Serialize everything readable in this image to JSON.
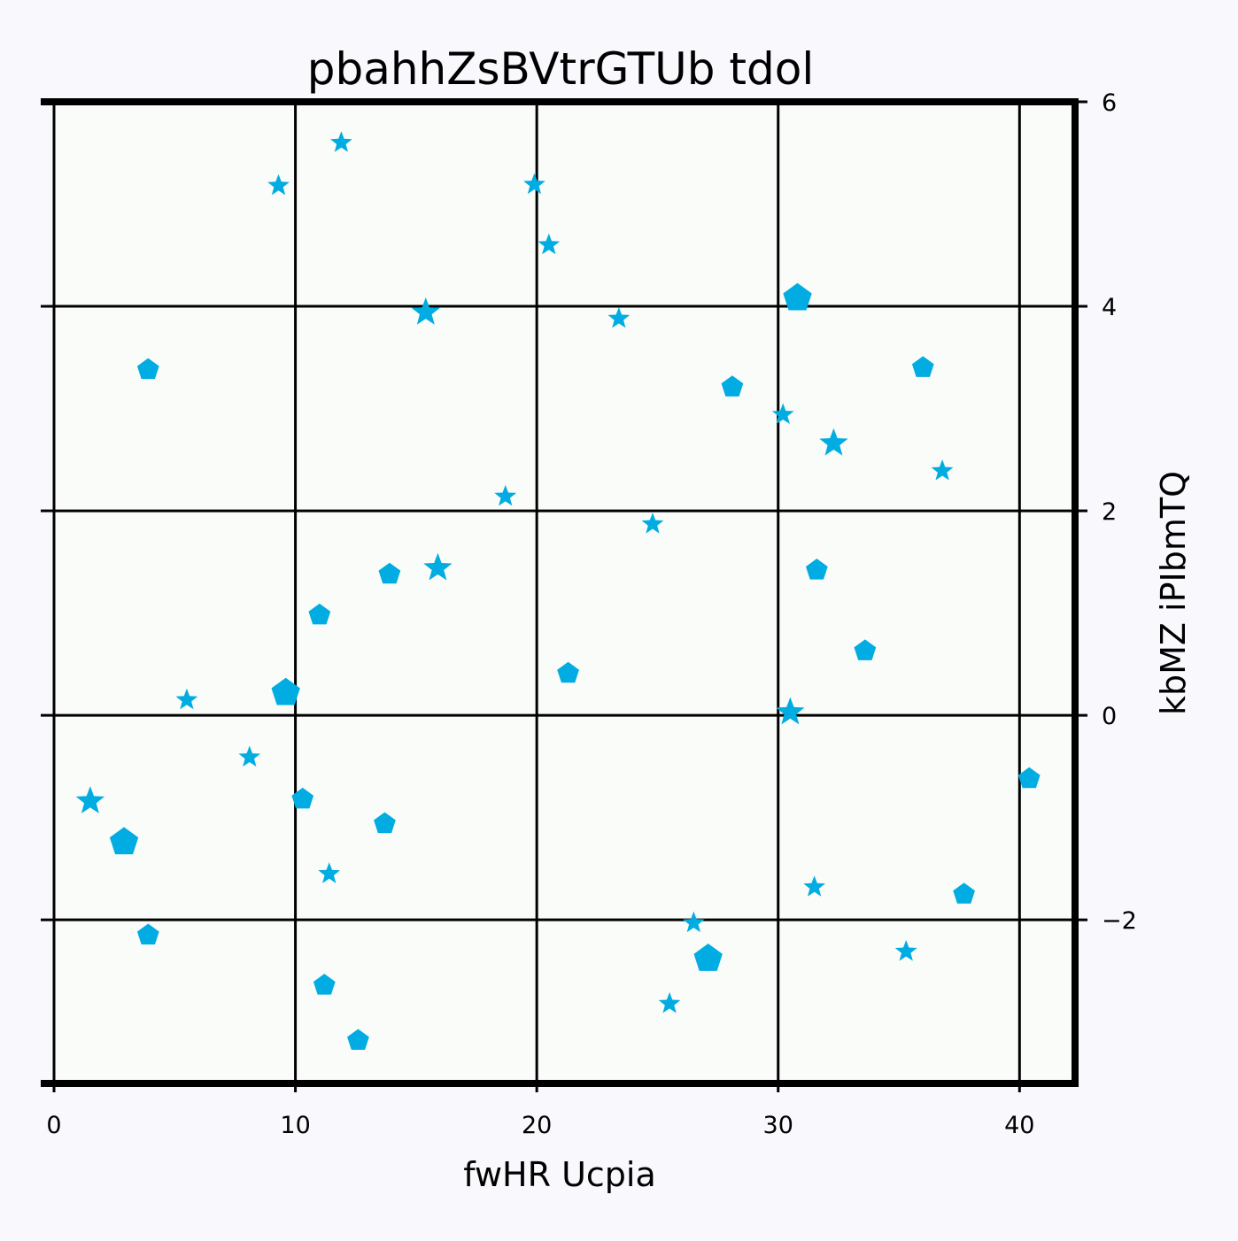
{
  "chart_data": {
    "type": "scatter",
    "title": "pbahhZsBVtrGTUb tdol",
    "xlabel": "fwHR Ucpia",
    "ylabel": "kbMZ iPIbmTQ",
    "xlim": [
      0,
      42.3
    ],
    "ylim": [
      -3.6,
      6.0
    ],
    "xticks": [
      0,
      10,
      20,
      30,
      40
    ],
    "xtick_labels": [
      "0",
      "10",
      "20",
      "30",
      "40"
    ],
    "yticks": [
      -2,
      0,
      2,
      4,
      6
    ],
    "ytick_labels": [
      "−2",
      "0",
      "2",
      "4",
      "6"
    ],
    "y_axis_side": "right",
    "grid": true,
    "legend": "none",
    "colors": {
      "marker": "#00ace2",
      "plot_bg": "#f9fcf8",
      "page_bg": "#f8f8fd"
    },
    "series": [
      {
        "marker": "star",
        "points": [
          {
            "x": 1.5,
            "y": -0.84,
            "s": "l"
          },
          {
            "x": 5.5,
            "y": 0.15,
            "s": "m"
          },
          {
            "x": 8.1,
            "y": -0.41,
            "s": "m"
          },
          {
            "x": 9.3,
            "y": 5.18,
            "s": "m"
          },
          {
            "x": 11.4,
            "y": -1.55,
            "s": "m"
          },
          {
            "x": 11.9,
            "y": 5.6,
            "s": "m"
          },
          {
            "x": 15.4,
            "y": 3.94,
            "s": "l"
          },
          {
            "x": 15.9,
            "y": 1.44,
            "s": "l"
          },
          {
            "x": 18.7,
            "y": 2.14,
            "s": "m"
          },
          {
            "x": 19.9,
            "y": 5.19,
            "s": "m"
          },
          {
            "x": 20.5,
            "y": 4.6,
            "s": "m"
          },
          {
            "x": 23.4,
            "y": 3.88,
            "s": "m"
          },
          {
            "x": 24.8,
            "y": 1.87,
            "s": "m"
          },
          {
            "x": 25.5,
            "y": -2.82,
            "s": "m"
          },
          {
            "x": 26.5,
            "y": -2.03,
            "s": "m"
          },
          {
            "x": 30.2,
            "y": 2.94,
            "s": "m"
          },
          {
            "x": 30.5,
            "y": 0.03,
            "s": "l"
          },
          {
            "x": 31.5,
            "y": -1.68,
            "s": "m"
          },
          {
            "x": 32.3,
            "y": 2.66,
            "s": "l"
          },
          {
            "x": 35.3,
            "y": -2.31,
            "s": "m"
          },
          {
            "x": 36.8,
            "y": 2.39,
            "s": "m"
          }
        ]
      },
      {
        "marker": "pentagon",
        "points": [
          {
            "x": 2.9,
            "y": -1.24,
            "s": "l"
          },
          {
            "x": 3.9,
            "y": 3.38,
            "s": "m"
          },
          {
            "x": 3.9,
            "y": -2.15,
            "s": "m"
          },
          {
            "x": 9.6,
            "y": 0.22,
            "s": "l"
          },
          {
            "x": 10.3,
            "y": -0.82,
            "s": "m"
          },
          {
            "x": 11.0,
            "y": 0.98,
            "s": "m"
          },
          {
            "x": 11.2,
            "y": -2.64,
            "s": "m"
          },
          {
            "x": 12.6,
            "y": -3.18,
            "s": "m"
          },
          {
            "x": 13.7,
            "y": -1.06,
            "s": "m"
          },
          {
            "x": 13.9,
            "y": 1.38,
            "s": "m"
          },
          {
            "x": 21.3,
            "y": 0.41,
            "s": "m"
          },
          {
            "x": 27.1,
            "y": -2.38,
            "s": "l"
          },
          {
            "x": 28.1,
            "y": 3.21,
            "s": "m"
          },
          {
            "x": 30.8,
            "y": 4.08,
            "s": "l"
          },
          {
            "x": 31.6,
            "y": 1.42,
            "s": "m"
          },
          {
            "x": 33.6,
            "y": 0.63,
            "s": "m"
          },
          {
            "x": 36.0,
            "y": 3.4,
            "s": "m"
          },
          {
            "x": 37.7,
            "y": -1.75,
            "s": "m"
          },
          {
            "x": 40.4,
            "y": -0.62,
            "s": "m"
          }
        ]
      }
    ]
  }
}
